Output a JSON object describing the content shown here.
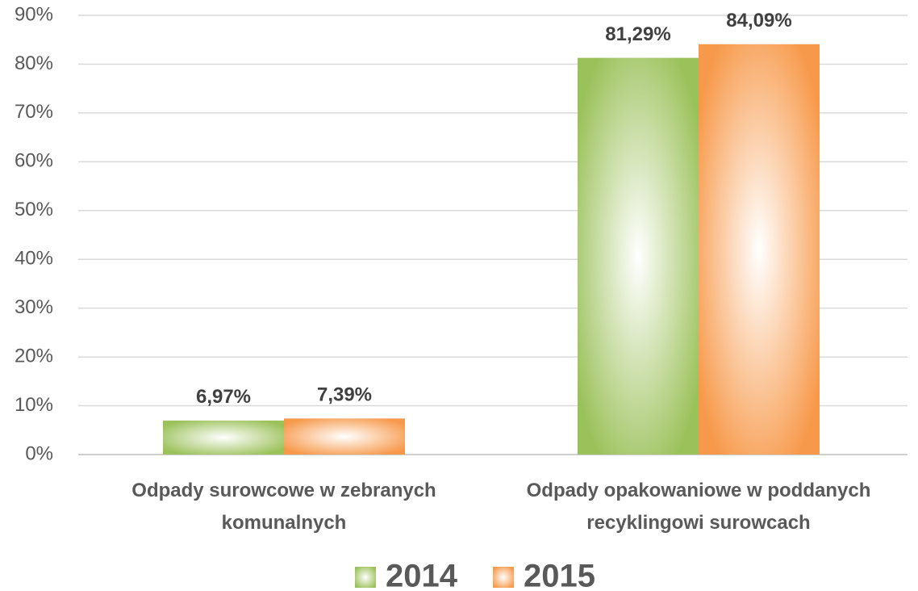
{
  "chart_data": {
    "type": "bar",
    "categories": [
      "Odpady surowcowe w zebranych komunalnych",
      "Odpady opakowaniowe w poddanych recyklingowi surowcach"
    ],
    "series": [
      {
        "name": "2014",
        "color": "#9bc15a",
        "values": [
          6.97,
          81.29
        ],
        "value_labels": [
          "6,97%",
          "81,29%"
        ]
      },
      {
        "name": "2015",
        "color": "#f7994a",
        "values": [
          7.39,
          84.09
        ],
        "value_labels": [
          "7,39%",
          "84,09%"
        ]
      }
    ],
    "ylim": [
      0,
      90
    ],
    "yticks": [
      {
        "value": 0,
        "label": "0%"
      },
      {
        "value": 10,
        "label": "10%"
      },
      {
        "value": 20,
        "label": "20%"
      },
      {
        "value": 30,
        "label": "30%"
      },
      {
        "value": 40,
        "label": "40%"
      },
      {
        "value": 50,
        "label": "50%"
      },
      {
        "value": 60,
        "label": "60%"
      },
      {
        "value": 70,
        "label": "70%"
      },
      {
        "value": 80,
        "label": "80%"
      },
      {
        "value": 90,
        "label": "90%"
      }
    ],
    "grid": true,
    "legend": "bottom"
  }
}
